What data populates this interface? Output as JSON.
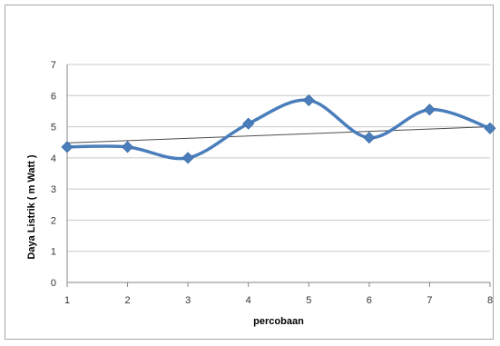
{
  "chart_data": {
    "type": "line",
    "title": "",
    "xlabel": "percobaan",
    "ylabel": "Daya Listrik ( m Watt )",
    "x": [
      1,
      2,
      3,
      4,
      5,
      6,
      7,
      8
    ],
    "x_tick_labels": [
      "1",
      "2",
      "3",
      "4",
      "5",
      "6",
      "7",
      "8"
    ],
    "y_tick_labels": [
      "0",
      "1",
      "2",
      "3",
      "4",
      "5",
      "6",
      "7"
    ],
    "ylim": [
      0,
      7
    ],
    "grid": "horizontal",
    "legend": "none",
    "series": [
      {
        "values": [
          4.35,
          4.35,
          4.0,
          5.1,
          5.85,
          4.65,
          5.55,
          4.95
        ],
        "color": "#4a7ebb",
        "marker": "diamond",
        "smooth": true
      }
    ],
    "trendline": {
      "kind": "linear",
      "start": 4.48,
      "end": 5.0,
      "color": "#4d4d4d"
    }
  }
}
